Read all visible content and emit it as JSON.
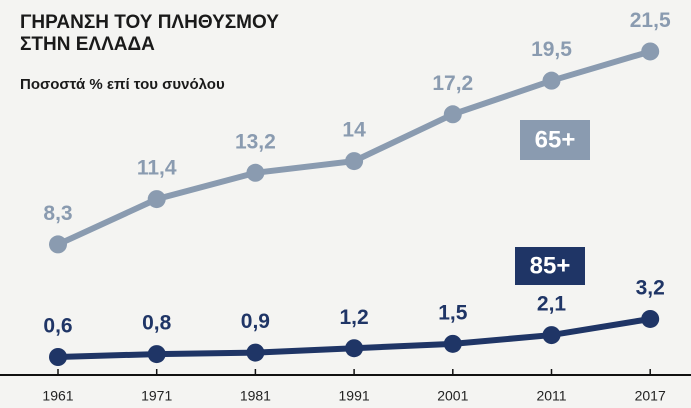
{
  "chart_data": {
    "type": "line",
    "title": "ΓΗΡΑΝΣΗ ΤΟΥ ΠΛΗΘΥΣΜΟΥ ΣΤΗΝ ΕΛΛΑΔΑ",
    "subtitle": "Ποσοστά % επί του συνόλου",
    "categories": [
      "1961",
      "1971",
      "1981",
      "1991",
      "2001",
      "2011",
      "2017"
    ],
    "series": [
      {
        "name": "65+",
        "color": "#8a9bb0",
        "values": [
          8.3,
          11.4,
          13.2,
          14,
          17.2,
          19.5,
          21.5
        ],
        "value_labels": [
          "8,3",
          "11,4",
          "13,2",
          "14",
          "17,2",
          "19,5",
          "21,5"
        ]
      },
      {
        "name": "85+",
        "color": "#1f3566",
        "values": [
          0.6,
          0.8,
          0.9,
          1.2,
          1.5,
          2.1,
          3.2
        ],
        "value_labels": [
          "0,6",
          "0,8",
          "0,9",
          "1,2",
          "1,5",
          "2,1",
          "3,2"
        ]
      }
    ]
  }
}
